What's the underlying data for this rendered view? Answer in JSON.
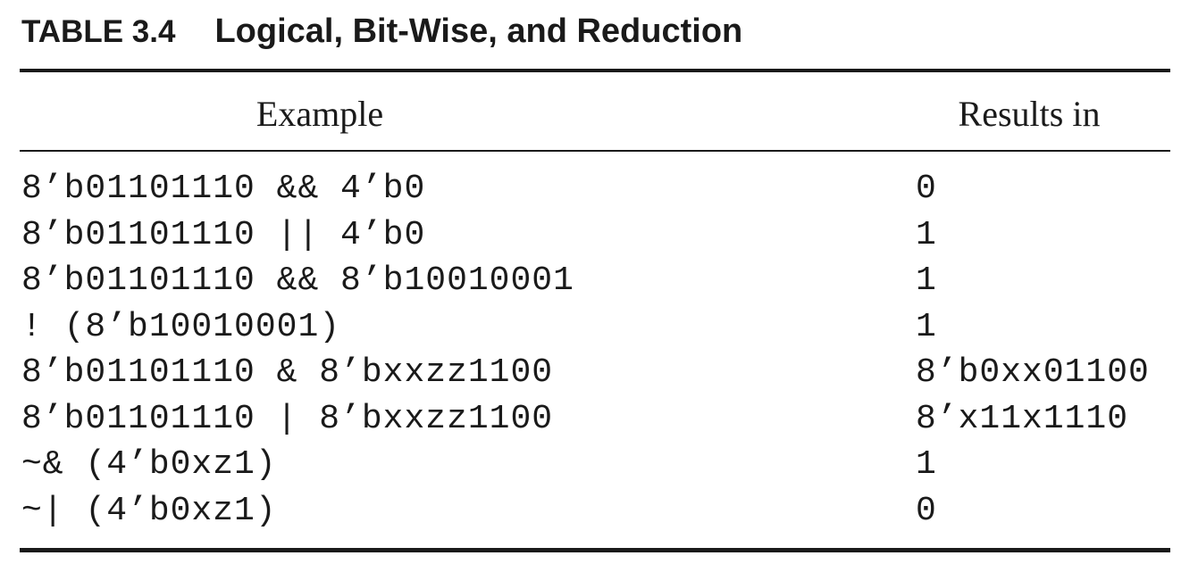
{
  "caption": {
    "label": "TABLE 3.4",
    "title": "Logical, Bit-Wise, and Reduction"
  },
  "headers": {
    "example": "Example",
    "result": "Results in"
  },
  "rows": [
    {
      "example": "8’b01101110 && 4’b0",
      "result": "0"
    },
    {
      "example": "8’b01101110 || 4’b0",
      "result": "1"
    },
    {
      "example": "8’b01101110 && 8’b10010001",
      "result": "1"
    },
    {
      "example": "! (8’b10010001)",
      "result": "1"
    },
    {
      "example": "8’b01101110 & 8’bxxzz1100",
      "result": "8’b0xx01100"
    },
    {
      "example": "8’b01101110 | 8’bxxzz1100",
      "result": "8’x11x1110"
    },
    {
      "example": "~& (4’b0xz1)",
      "result": "1"
    },
    {
      "example": "~| (4’b0xz1)",
      "result": "0"
    }
  ]
}
